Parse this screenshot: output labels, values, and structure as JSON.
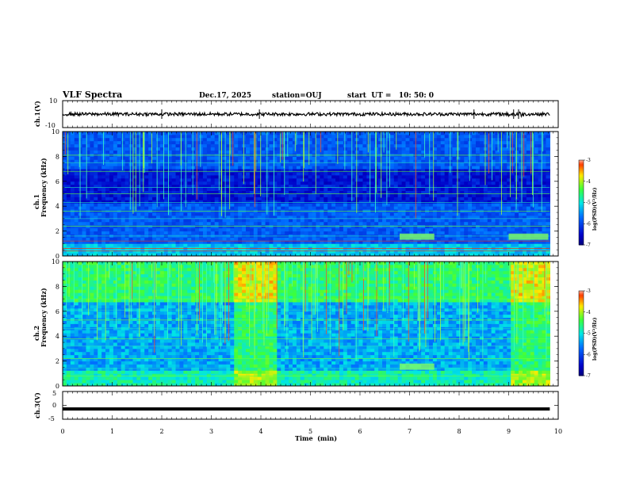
{
  "header": {
    "title": "VLF Spectra",
    "date": "Dec.17, 2025",
    "station": "station=OUJ",
    "start_ut": "start  UT =   10: 50: 0"
  },
  "chart_data": {
    "type": "heatmap",
    "title": "VLF Spectra",
    "x": {
      "label": "Time  (min)",
      "range": [
        0,
        10
      ],
      "ticks": [
        "0",
        "1",
        "2",
        "3",
        "4",
        "5",
        "6",
        "7",
        "8",
        "9",
        "10"
      ],
      "data_end": 9.83
    },
    "panels": [
      {
        "id": "ch1-waveform",
        "type": "line",
        "ylabel": "ch.1(V)",
        "yrange": [
          -10,
          10
        ],
        "yticks": [
          "10",
          "-10"
        ],
        "mean": 0,
        "amplitude_typical": 1.2,
        "spikes_min": [
          2.0,
          3.97,
          8.3,
          9.1,
          9.2
        ]
      },
      {
        "id": "ch1-spectrogram",
        "type": "heatmap",
        "ylabel_channel": "ch.1",
        "ylabel": "Frequency  (kHz)",
        "yrange": [
          0,
          10
        ],
        "yticks": [
          "0",
          "2",
          "4",
          "6",
          "8",
          "10"
        ],
        "colorbar": {
          "label": "log(PSD)(V²/Hz)",
          "range": [
            -7,
            -3
          ],
          "ticks": [
            "-3",
            "-4",
            "-5",
            "-6",
            "-7"
          ]
        },
        "features": {
          "dark_band_khz": [
            4.2,
            7.0
          ],
          "band_1_5khz_min": [
            [
              6.8,
              7.5
            ],
            [
              9.0,
              9.8
            ]
          ],
          "red_lines_khz": [
            0.4,
            0.6,
            1.2
          ]
        }
      },
      {
        "id": "ch2-spectrogram",
        "type": "heatmap",
        "ylabel_channel": "ch.2",
        "ylabel": "Frequency  (kHz)",
        "yrange": [
          0,
          10
        ],
        "yticks": [
          "0",
          "2",
          "4",
          "6",
          "8",
          "10"
        ],
        "colorbar": {
          "label": "log(PSD)(V²/Hz)",
          "range": [
            -7,
            -3
          ],
          "ticks": [
            "-3",
            "-4",
            "-5",
            "-6",
            "-7"
          ]
        },
        "features": {
          "bright_blocks_min": [
            [
              3.4,
              4.3
            ],
            [
              9.0,
              9.8
            ]
          ],
          "band_1_5khz_min": [
            [
              6.8,
              7.5
            ]
          ]
        }
      },
      {
        "id": "ch3-waveform",
        "type": "line",
        "ylabel": "ch.3(V)",
        "yrange": [
          -5,
          5
        ],
        "yticks": [
          "5",
          "0",
          "-5"
        ],
        "value": -1.3
      }
    ]
  }
}
